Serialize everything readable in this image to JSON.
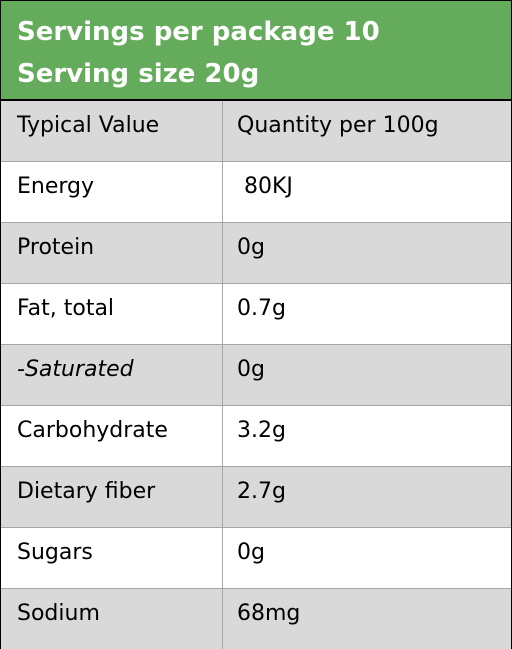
{
  "colors": {
    "header_bg": "#64ab5c",
    "row_shade": "#d9d9d9",
    "row_plain": "#ffffff",
    "header_text": "#ffffff"
  },
  "header": {
    "servings_per_package": "Servings per package 10",
    "serving_size": "Serving size 20g"
  },
  "table": {
    "header_row": {
      "typical_value": "Typical Value",
      "quantity": "Quantity per 100g"
    },
    "rows": [
      {
        "name": "Energy",
        "value": " 80KJ"
      },
      {
        "name": "Protein",
        "value": "0g"
      },
      {
        "name": "Fat, total",
        "value": "0.7g"
      },
      {
        "name": "-Saturated",
        "value": "0g"
      },
      {
        "name": "Carbohydrate",
        "value": "3.2g"
      },
      {
        "name": "Dietary fiber",
        "value": "2.7g"
      },
      {
        "name": "Sugars",
        "value": "0g"
      },
      {
        "name": "Sodium",
        "value": "68mg"
      }
    ]
  }
}
